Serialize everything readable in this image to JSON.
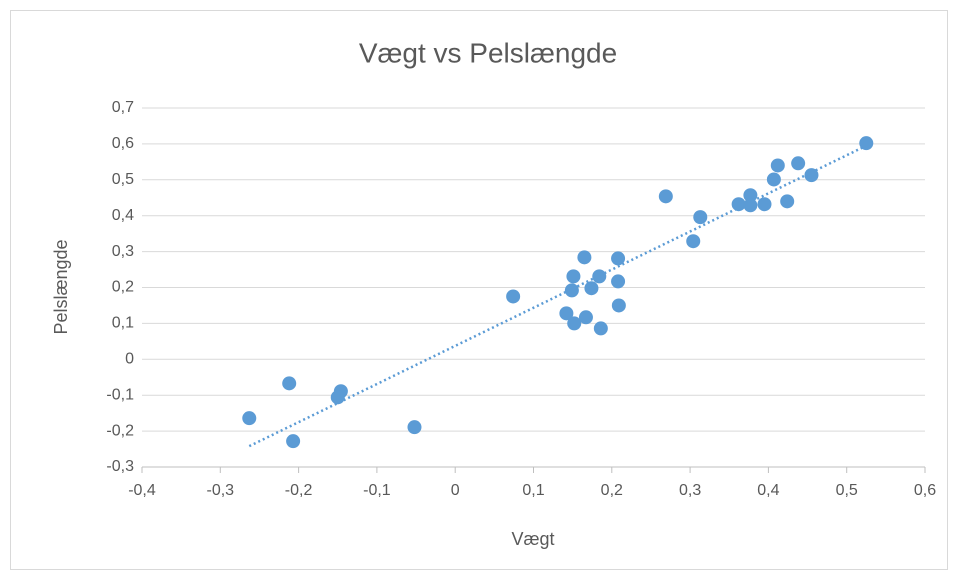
{
  "chart_data": {
    "type": "scatter",
    "title": "Vægt vs Pelslængde",
    "x_label": "Vægt",
    "y_label": "Pelslængde",
    "series": [
      {
        "color": "#5b9bd5",
        "x": [
          0.525,
          0.438,
          0.412,
          0.455,
          0.407,
          0.377,
          0.269,
          0.362,
          0.377,
          0.395,
          0.424,
          0.313,
          0.304,
          0.165,
          0.208,
          0.151,
          0.184,
          0.208,
          0.174,
          0.149,
          0.209,
          0.074,
          0.142,
          0.167,
          0.152,
          0.186,
          -0.212,
          -0.146,
          -0.15,
          -0.263,
          -0.207,
          -0.052
        ],
        "values": [
          0.602,
          0.546,
          0.54,
          0.513,
          0.501,
          0.457,
          0.454,
          0.432,
          0.429,
          0.432,
          0.44,
          0.396,
          0.329,
          0.284,
          0.281,
          0.231,
          0.231,
          0.217,
          0.198,
          0.192,
          0.15,
          0.175,
          0.128,
          0.117,
          0.1,
          0.086,
          -0.067,
          -0.089,
          -0.106,
          -0.164,
          -0.228,
          -0.189
        ]
      }
    ],
    "trendline": {
      "color": "#5b9bd5",
      "x": [
        -0.263,
        0.525
      ],
      "values": [
        -0.242,
        0.595
      ]
    },
    "xlim": [
      -0.4,
      0.6
    ],
    "ylim": [
      -0.3,
      0.7
    ],
    "xticks": [
      {
        "value": -0.4,
        "label": "-0,4"
      },
      {
        "value": -0.3,
        "label": "-0,3"
      },
      {
        "value": -0.2,
        "label": "-0,2"
      },
      {
        "value": -0.1,
        "label": "-0,1"
      },
      0,
      {
        "value": 0.1,
        "label": "0,1"
      },
      {
        "value": 0.2,
        "label": "0,2"
      },
      {
        "value": 0.3,
        "label": "0,3"
      },
      {
        "value": 0.4,
        "label": "0,4"
      },
      {
        "value": 0.5,
        "label": "0,5"
      },
      {
        "value": 0.6,
        "label": "0,6"
      }
    ],
    "yticks": [
      {
        "value": -0.3,
        "label": "-0,3"
      },
      {
        "value": -0.2,
        "label": "-0,2"
      },
      {
        "value": -0.1,
        "label": "-0,1"
      },
      0,
      {
        "value": 0.1,
        "label": "0,1"
      },
      {
        "value": 0.2,
        "label": "0,2"
      },
      {
        "value": 0.3,
        "label": "0,3"
      },
      {
        "value": 0.4,
        "label": "0,4"
      },
      {
        "value": 0.5,
        "label": "0,5"
      },
      {
        "value": 0.6,
        "label": "0,6"
      },
      {
        "value": 0.7,
        "label": "0,7"
      }
    ],
    "grid": true
  }
}
